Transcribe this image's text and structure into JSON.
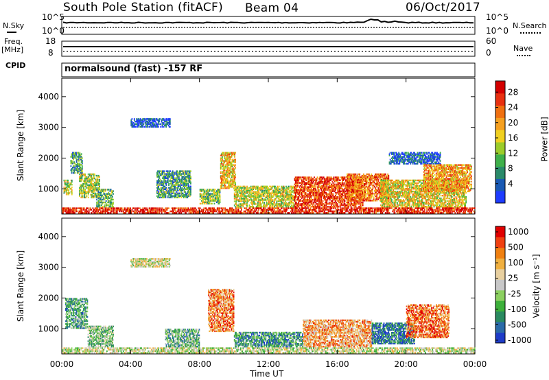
{
  "header": {
    "station": "South Pole Station (fitACF)",
    "beam": "Beam 04",
    "date": "06/Oct/2017"
  },
  "side_labels": {
    "nsky": "N.Sky",
    "nsearch": "N.Search",
    "freq": "Freq.",
    "mhz": "[MHz]",
    "nave": "Nave",
    "cpid": "CPID"
  },
  "cpid_text": "normalsound (fast) -157 RF",
  "noise_panel": {
    "left_ticks": [
      "10^5",
      "10^0"
    ],
    "right_ticks": [
      "10^5",
      "10^0"
    ]
  },
  "freq_panel": {
    "left_ticks": [
      "18",
      "8"
    ],
    "right_ticks": [
      "60",
      "0"
    ]
  },
  "chart_data": [
    {
      "type": "heatmap",
      "name": "power",
      "ylabel": "Slant Range [km]",
      "xlabel": "",
      "ylim": [
        180,
        4600
      ],
      "yticks": [
        "1000",
        "2000",
        "3000",
        "4000"
      ],
      "xticks": [
        "00:00",
        "04:00",
        "08:00",
        "12:00",
        "16:00",
        "20:00",
        "00:00"
      ],
      "colorbar_label": "Power [dB]",
      "colorbar_ticks": [
        "4",
        "8",
        "12",
        "16",
        "20",
        "24",
        "28"
      ],
      "colorbar_colors": [
        "#1e3cff",
        "#1a5ab4",
        "#2a8a6a",
        "#3fb04a",
        "#9ccc2a",
        "#f0d020",
        "#f5a020",
        "#f07010",
        "#e83010",
        "#d40000"
      ],
      "patches": [
        {
          "t0": 0.1,
          "t1": 0.6,
          "r0": 800,
          "r1": 1300,
          "level": 0.5
        },
        {
          "t0": 0.5,
          "t1": 1.2,
          "r0": 1500,
          "r1": 2200,
          "level": 0.3
        },
        {
          "t0": 1.0,
          "t1": 2.2,
          "r0": 700,
          "r1": 1500,
          "level": 0.45
        },
        {
          "t0": 2.0,
          "t1": 3.0,
          "r0": 400,
          "r1": 1000,
          "level": 0.35
        },
        {
          "t0": 4.0,
          "t1": 6.3,
          "r0": 3000,
          "r1": 3300,
          "level": 0.1
        },
        {
          "t0": 5.5,
          "t1": 7.5,
          "r0": 700,
          "r1": 1600,
          "level": 0.3
        },
        {
          "t0": 8.0,
          "t1": 9.2,
          "r0": 500,
          "r1": 1000,
          "level": 0.4
        },
        {
          "t0": 9.2,
          "t1": 10.1,
          "r0": 1000,
          "r1": 2200,
          "level": 0.6
        },
        {
          "t0": 10.0,
          "t1": 13.5,
          "r0": 400,
          "r1": 1100,
          "level": 0.5
        },
        {
          "t0": 13.5,
          "t1": 17.5,
          "r0": 400,
          "r1": 1400,
          "level": 0.85
        },
        {
          "t0": 16.5,
          "t1": 19.0,
          "r0": 600,
          "r1": 1500,
          "level": 0.75
        },
        {
          "t0": 18.5,
          "t1": 23.5,
          "r0": 400,
          "r1": 1300,
          "level": 0.55
        },
        {
          "t0": 19.0,
          "t1": 22.0,
          "r0": 1800,
          "r1": 2200,
          "level": 0.15
        },
        {
          "t0": 21.0,
          "t1": 23.8,
          "r0": 900,
          "r1": 1800,
          "level": 0.65
        },
        {
          "t0": 0.0,
          "t1": 24.0,
          "r0": 200,
          "r1": 400,
          "level": 0.9
        }
      ]
    },
    {
      "type": "heatmap",
      "name": "velocity",
      "ylabel": "Slant Range [km]",
      "xlabel": "Time UT",
      "ylim": [
        180,
        4600
      ],
      "yticks": [
        "1000",
        "2000",
        "3000",
        "4000"
      ],
      "xticks": [
        "00:00",
        "04:00",
        "08:00",
        "12:00",
        "16:00",
        "20:00",
        "00:00"
      ],
      "colorbar_label": "Velocity [m s⁻¹]",
      "colorbar_ticks": [
        "1000",
        "500",
        "100",
        "25",
        "-25",
        "-100",
        "-500",
        "-1000"
      ],
      "colorbar_colors": [
        "#1e3cc8",
        "#2a6aa8",
        "#2a8a60",
        "#3db03a",
        "#8cd060",
        "#c8c8c8",
        "#e8d0a0",
        "#f0b040",
        "#f08010",
        "#f04010",
        "#e00000"
      ],
      "patches": [
        {
          "t0": 0.2,
          "t1": 1.5,
          "r0": 1000,
          "r1": 2000,
          "level": 0.3
        },
        {
          "t0": 1.5,
          "t1": 3.0,
          "r0": 400,
          "r1": 1100,
          "level": 0.4
        },
        {
          "t0": 4.0,
          "t1": 6.3,
          "r0": 3000,
          "r1": 3300,
          "level": 0.5
        },
        {
          "t0": 6.0,
          "t1": 8.0,
          "r0": 400,
          "r1": 1000,
          "level": 0.35
        },
        {
          "t0": 8.5,
          "t1": 10.0,
          "r0": 900,
          "r1": 2300,
          "level": 0.75
        },
        {
          "t0": 10.0,
          "t1": 14.0,
          "r0": 400,
          "r1": 900,
          "level": 0.25
        },
        {
          "t0": 14.0,
          "t1": 18.0,
          "r0": 400,
          "r1": 1300,
          "level": 0.7
        },
        {
          "t0": 18.0,
          "t1": 20.5,
          "r0": 500,
          "r1": 1200,
          "level": 0.15
        },
        {
          "t0": 20.0,
          "t1": 22.5,
          "r0": 700,
          "r1": 1800,
          "level": 0.8
        },
        {
          "t0": 0.0,
          "t1": 24.0,
          "r0": 200,
          "r1": 400,
          "level": 0.5
        }
      ]
    }
  ]
}
